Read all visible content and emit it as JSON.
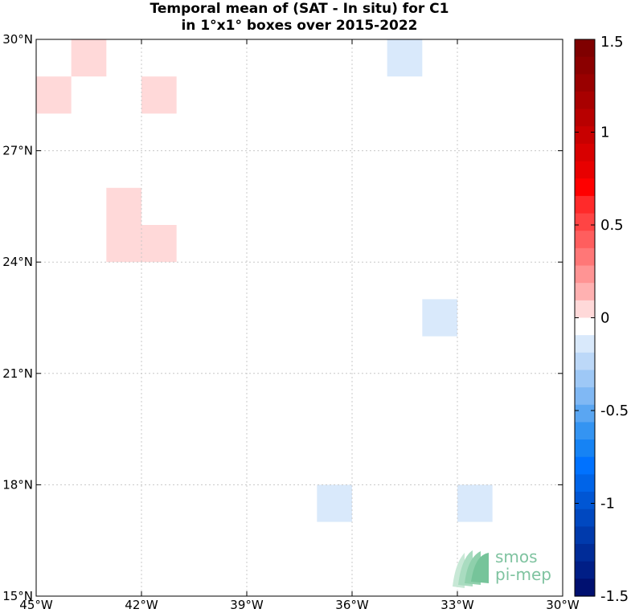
{
  "title": {
    "line1": "Temporal mean of (SAT - In situ) for C1",
    "line2": "in 1°x1° boxes over 2015-2022"
  },
  "map": {
    "lon_range": [
      -45,
      -30
    ],
    "lat_range": [
      15,
      30
    ],
    "x_ticks": [
      {
        "value": -45,
        "label": "45°W"
      },
      {
        "value": -42,
        "label": "42°W"
      },
      {
        "value": -39,
        "label": "39°W"
      },
      {
        "value": -36,
        "label": "36°W"
      },
      {
        "value": -33,
        "label": "33°W"
      },
      {
        "value": -30,
        "label": "30°W"
      }
    ],
    "y_ticks": [
      {
        "value": 30,
        "label": "30°N"
      },
      {
        "value": 27,
        "label": "27°N"
      },
      {
        "value": 24,
        "label": "24°N"
      },
      {
        "value": 21,
        "label": "21°N"
      },
      {
        "value": 18,
        "label": "18°N"
      },
      {
        "value": 15,
        "label": "15°N"
      }
    ],
    "grid": "dotted",
    "cells": [
      {
        "lon_min": -44,
        "lat_min": 29,
        "value": 0.15,
        "color": "#ffd9d9"
      },
      {
        "lon_min": -45,
        "lat_min": 28,
        "value": 0.15,
        "color": "#ffd9d9"
      },
      {
        "lon_min": -42,
        "lat_min": 28,
        "value": 0.15,
        "color": "#ffd9d9"
      },
      {
        "lon_min": -43,
        "lat_min": 25,
        "value": 0.15,
        "color": "#ffd9d9"
      },
      {
        "lon_min": -43,
        "lat_min": 24,
        "value": 0.15,
        "color": "#ffd9d9"
      },
      {
        "lon_min": -42,
        "lat_min": 24,
        "value": 0.15,
        "color": "#ffd9d9"
      },
      {
        "lon_min": -35,
        "lat_min": 29,
        "value": -0.15,
        "color": "#d9e9fb"
      },
      {
        "lon_min": -34,
        "lat_min": 22,
        "value": -0.15,
        "color": "#d9e9fb"
      },
      {
        "lon_min": -37,
        "lat_min": 17,
        "value": -0.15,
        "color": "#d9e9fb"
      },
      {
        "lon_min": -33,
        "lat_min": 17,
        "value": -0.15,
        "color": "#d9e9fb"
      }
    ]
  },
  "colorbar": {
    "range": [
      -1.5,
      1.5
    ],
    "colors": [
      "#7f0000",
      "#8b0000",
      "#990000",
      "#a80000",
      "#b80000",
      "#c80000",
      "#d80000",
      "#e80000",
      "#ff0000",
      "#ff2a2a",
      "#ff4444",
      "#ff5e5e",
      "#ff7777",
      "#ff9494",
      "#ffb1b1",
      "#ffd9d9",
      "#ffffff",
      "#d9e9fb",
      "#bcd8f8",
      "#9ec8f6",
      "#80b8f4",
      "#5aa6f2",
      "#3494f2",
      "#1683f4",
      "#0072ff",
      "#0064e8",
      "#0056d4",
      "#0048c0",
      "#003aac",
      "#002c98",
      "#001e86",
      "#001070"
    ],
    "ticks": [
      {
        "value": 1.5,
        "label": "1.5"
      },
      {
        "value": 1,
        "label": "1"
      },
      {
        "value": 0.5,
        "label": "0.5"
      },
      {
        "value": 0,
        "label": "0"
      },
      {
        "value": -0.5,
        "label": "-0.5"
      },
      {
        "value": -1,
        "label": "-1"
      },
      {
        "value": -1.5,
        "label": "-1.5"
      }
    ]
  },
  "logo": {
    "line1": "smos",
    "line2": "pi-mep",
    "color": "#7fc3a0"
  }
}
